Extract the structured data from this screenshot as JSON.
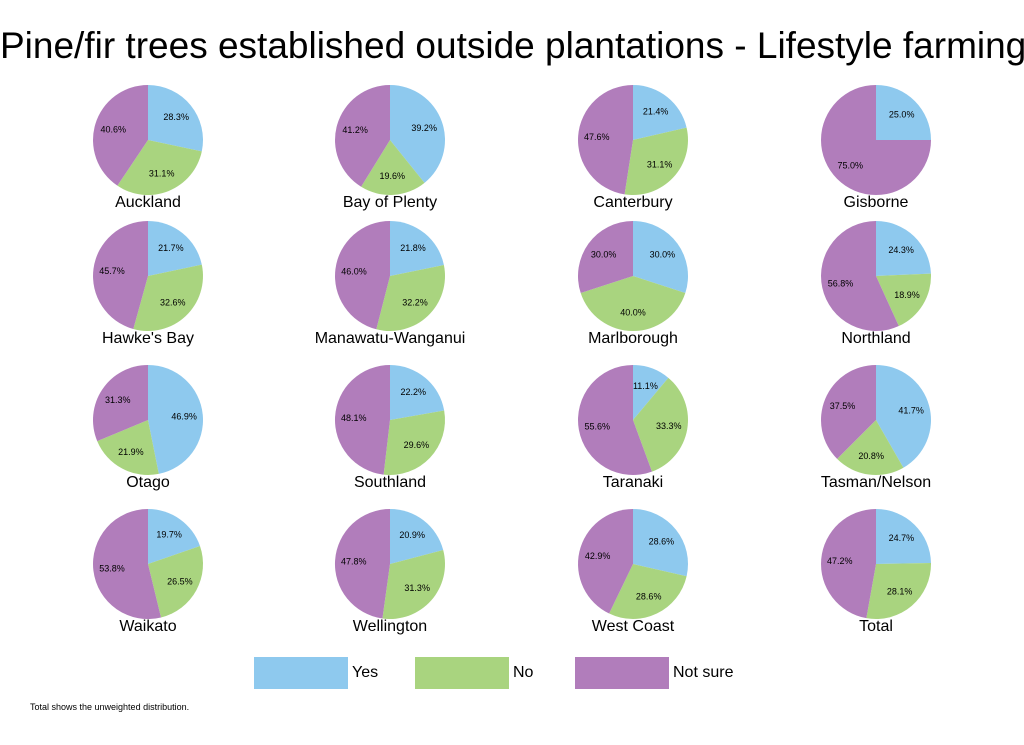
{
  "chart_data": {
    "type": "pie",
    "title": "Pine/fir trees established outside plantations - Lifestyle farming",
    "legend": {
      "placement": "bottom",
      "entries": [
        "Yes",
        "No",
        "Not sure"
      ]
    },
    "colors": {
      "Yes": "#8ec9ee",
      "No": "#a9d47f",
      "Not sure": "#b17dbb"
    },
    "charts": [
      {
        "region": "Auckland",
        "values": [
          28.3,
          31.1,
          40.6
        ],
        "labels": [
          "28.3%",
          "31.1%",
          "40.6%"
        ]
      },
      {
        "region": "Bay of Plenty",
        "values": [
          39.2,
          19.6,
          41.2
        ],
        "labels": [
          "39.2%",
          "19.6%",
          "41.2%"
        ]
      },
      {
        "region": "Canterbury",
        "values": [
          21.4,
          31.1,
          47.6
        ],
        "labels": [
          "21.4%",
          "31.1%",
          "47.6%"
        ]
      },
      {
        "region": "Gisborne",
        "values": [
          25.0,
          0,
          75.0
        ],
        "labels": [
          "25.0%",
          "",
          "75.0%"
        ]
      },
      {
        "region": "Hawke's Bay",
        "values": [
          21.7,
          32.6,
          45.7
        ],
        "labels": [
          "21.7%",
          "32.6%",
          "45.7%"
        ]
      },
      {
        "region": "Manawatu-Wanganui",
        "values": [
          21.8,
          32.2,
          46.0
        ],
        "labels": [
          "21.8%",
          "32.2%",
          "46.0%"
        ]
      },
      {
        "region": "Marlborough",
        "values": [
          30.0,
          40.0,
          30.0
        ],
        "labels": [
          "30.0%",
          "40.0%",
          "30.0%"
        ]
      },
      {
        "region": "Northland",
        "values": [
          24.3,
          18.9,
          56.8
        ],
        "labels": [
          "24.3%",
          "18.9%",
          "56.8%"
        ]
      },
      {
        "region": "Otago",
        "values": [
          46.9,
          21.9,
          31.3
        ],
        "labels": [
          "46.9%",
          "21.9%",
          "31.3%"
        ]
      },
      {
        "region": "Southland",
        "values": [
          22.2,
          29.6,
          48.1
        ],
        "labels": [
          "22.2%",
          "29.6%",
          "48.1%"
        ]
      },
      {
        "region": "Taranaki",
        "values": [
          11.1,
          33.3,
          55.6
        ],
        "labels": [
          "11.1%",
          "33.3%",
          "55.6%"
        ]
      },
      {
        "region": "Tasman/Nelson",
        "values": [
          41.7,
          20.8,
          37.5
        ],
        "labels": [
          "41.7%",
          "20.8%",
          "37.5%"
        ]
      },
      {
        "region": "Waikato",
        "values": [
          19.7,
          26.5,
          53.8
        ],
        "labels": [
          "19.7%",
          "26.5%",
          "53.8%"
        ]
      },
      {
        "region": "Wellington",
        "values": [
          20.9,
          31.3,
          47.8
        ],
        "labels": [
          "20.9%",
          "31.3%",
          "47.8%"
        ]
      },
      {
        "region": "West Coast",
        "values": [
          28.6,
          28.6,
          42.9
        ],
        "labels": [
          "28.6%",
          "28.6%",
          "42.9%"
        ]
      },
      {
        "region": "Total",
        "values": [
          24.7,
          28.1,
          47.2
        ],
        "labels": [
          "24.7%",
          "28.1%",
          "47.2%"
        ]
      }
    ],
    "footnote": "Total shows the unweighted distribution."
  }
}
